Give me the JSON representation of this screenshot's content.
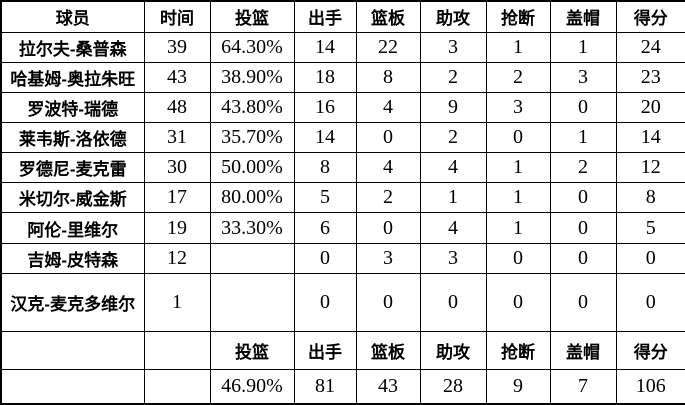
{
  "colors": {
    "background": "#ffffff",
    "border": "#000000",
    "text": "#000000"
  },
  "table": {
    "columns": [
      "球员",
      "时间",
      "投篮",
      "出手",
      "篮板",
      "助攻",
      "抢断",
      "盖帽",
      "得分"
    ],
    "column_keys": [
      "player",
      "time",
      "fg-pct",
      "shots",
      "rebounds",
      "assists",
      "steals",
      "blocks",
      "points"
    ],
    "rows": [
      {
        "cells": [
          "拉尔夫-桑普森",
          "39",
          "64.30%",
          "14",
          "22",
          "3",
          "1",
          "1",
          "24"
        ]
      },
      {
        "cells": [
          "哈基姆-奥拉朱旺",
          "43",
          "38.90%",
          "18",
          "8",
          "2",
          "2",
          "3",
          "23"
        ]
      },
      {
        "cells": [
          "罗波特-瑞德",
          "48",
          "43.80%",
          "16",
          "4",
          "9",
          "3",
          "0",
          "20"
        ]
      },
      {
        "cells": [
          "莱韦斯-洛依德",
          "31",
          "35.70%",
          "14",
          "0",
          "2",
          "0",
          "1",
          "14"
        ]
      },
      {
        "cells": [
          "罗德尼-麦克雷",
          "30",
          "50.00%",
          "8",
          "4",
          "4",
          "1",
          "2",
          "12"
        ]
      },
      {
        "cells": [
          "米切尔-威金斯",
          "17",
          "80.00%",
          "5",
          "2",
          "1",
          "1",
          "0",
          "8"
        ]
      },
      {
        "cells": [
          "阿伦-里维尔",
          "19",
          "33.30%",
          "6",
          "0",
          "4",
          "1",
          "0",
          "5"
        ]
      },
      {
        "cells": [
          "吉姆-皮特森",
          "12",
          "",
          "0",
          "3",
          "3",
          "0",
          "0",
          "0"
        ]
      },
      {
        "cells": [
          "汉克-麦克多维尔",
          "1",
          "",
          "0",
          "0",
          "0",
          "0",
          "0",
          "0"
        ]
      }
    ],
    "footer_header": {
      "cells": [
        "",
        "",
        "投篮",
        "出手",
        "篮板",
        "助攻",
        "抢断",
        "盖帽",
        "得分"
      ]
    },
    "totals": {
      "cells": [
        "",
        "",
        "46.90%",
        "81",
        "43",
        "28",
        "9",
        "7",
        "106"
      ]
    }
  },
  "chart_data": {
    "type": "table",
    "title": "",
    "columns": [
      "球员",
      "时间",
      "投篮",
      "出手",
      "篮板",
      "助攻",
      "抢断",
      "盖帽",
      "得分"
    ],
    "rows": [
      [
        "拉尔夫-桑普森",
        39,
        "64.30%",
        14,
        22,
        3,
        1,
        1,
        24
      ],
      [
        "哈基姆-奥拉朱旺",
        43,
        "38.90%",
        18,
        8,
        2,
        2,
        3,
        23
      ],
      [
        "罗波特-瑞德",
        48,
        "43.80%",
        16,
        4,
        9,
        3,
        0,
        20
      ],
      [
        "莱韦斯-洛依德",
        31,
        "35.70%",
        14,
        0,
        2,
        0,
        1,
        14
      ],
      [
        "罗德尼-麦克雷",
        30,
        "50.00%",
        8,
        4,
        4,
        1,
        2,
        12
      ],
      [
        "米切尔-威金斯",
        17,
        "80.00%",
        5,
        2,
        1,
        1,
        0,
        8
      ],
      [
        "阿伦-里维尔",
        19,
        "33.30%",
        6,
        0,
        4,
        1,
        0,
        5
      ],
      [
        "吉姆-皮特森",
        12,
        "",
        0,
        3,
        3,
        0,
        0,
        0
      ],
      [
        "汉克-麦克多维尔",
        1,
        "",
        0,
        0,
        0,
        0,
        0,
        0
      ]
    ],
    "totals_row": [
      "",
      "",
      "46.90%",
      81,
      43,
      28,
      9,
      7,
      106
    ]
  }
}
